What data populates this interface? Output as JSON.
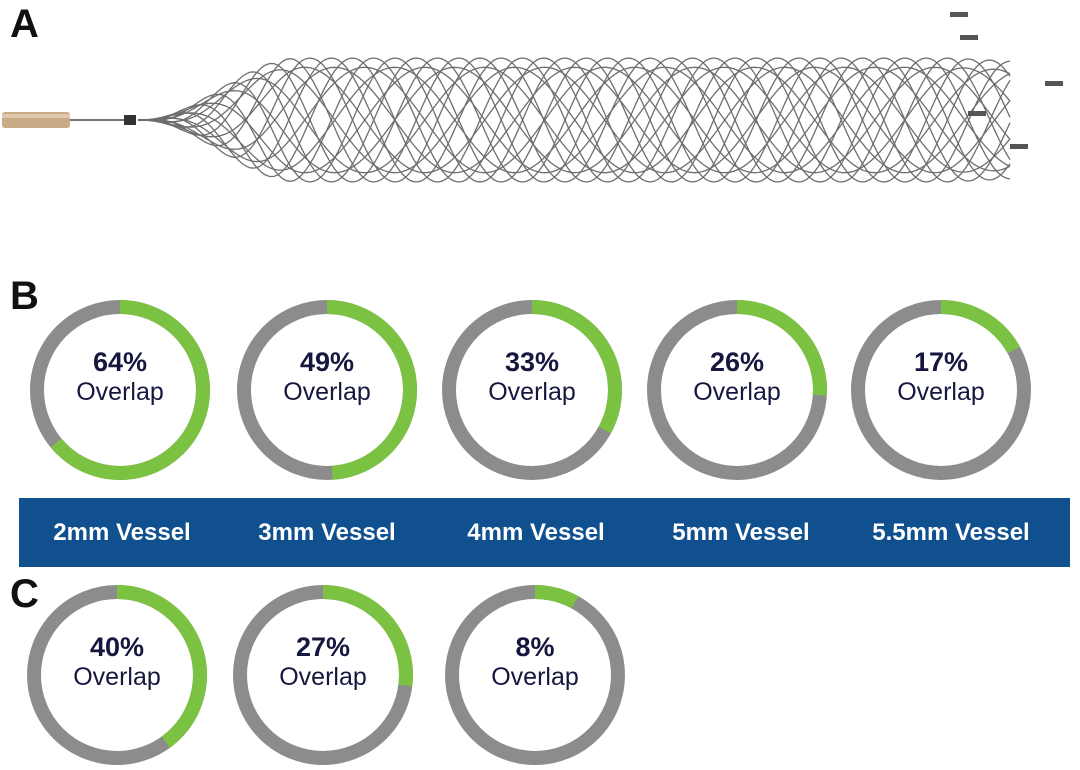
{
  "panels": {
    "a": "A",
    "b": "B",
    "c": "C"
  },
  "overlap_label": "Overlap",
  "colors": {
    "track": "#8c8c8c",
    "fill": "#7cc242",
    "band": "#10508f",
    "text": "#16173f"
  },
  "panel_b": [
    {
      "value": 64,
      "text": "64%",
      "vessel": "2mm Vessel"
    },
    {
      "value": 49,
      "text": "49%",
      "vessel": "3mm Vessel"
    },
    {
      "value": 33,
      "text": "33%",
      "vessel": "4mm Vessel"
    },
    {
      "value": 26,
      "text": "26%",
      "vessel": "5mm Vessel"
    },
    {
      "value": 17,
      "text": "17%",
      "vessel": "5.5mm Vessel"
    }
  ],
  "panel_c": [
    {
      "value": 40,
      "text": "40%"
    },
    {
      "value": 27,
      "text": "27%"
    },
    {
      "value": 8,
      "text": "8%"
    }
  ]
}
